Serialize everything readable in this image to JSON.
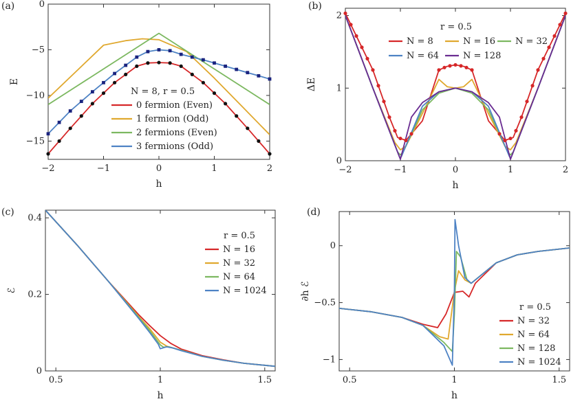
{
  "chart_data": [
    {
      "panel": "(a)",
      "type": "line",
      "xlabel": "h",
      "ylabel": "E",
      "xlim": [
        -2,
        2
      ],
      "ylim": [
        -17,
        0
      ],
      "xticks": [
        -2,
        -1,
        0,
        1,
        2
      ],
      "yticks": [
        0,
        -5,
        -10,
        -15
      ],
      "legend_title": "N = 8,  r = 0.5",
      "legend_position": "center-right",
      "series": [
        {
          "name": "0 fermion (Even)",
          "color": "#d62728",
          "x": [
            -2,
            -1.6,
            -1.2,
            -0.8,
            -0.4,
            -0.2,
            0,
            0.2,
            0.4,
            0.8,
            1.2,
            1.6,
            2
          ],
          "y": [
            -16.4,
            -13.6,
            -10.9,
            -8.6,
            -6.8,
            -6.45,
            -6.4,
            -6.45,
            -6.8,
            -8.6,
            -10.9,
            -13.6,
            -16.4
          ]
        },
        {
          "name": "1 fermion (Odd)",
          "color": "#e0a82e",
          "x": [
            -2,
            -1.5,
            -1,
            -0.6,
            -0.3,
            0,
            0.5,
            1,
            1.5,
            2
          ],
          "y": [
            -10.3,
            -7.4,
            -4.5,
            -4.0,
            -3.8,
            -3.9,
            -5.2,
            -8.1,
            -11.2,
            -14.3
          ]
        },
        {
          "name": "2 fermions (Even)",
          "color": "#7cb860",
          "x": [
            -2,
            -1,
            0,
            1,
            2
          ],
          "y": [
            -11.0,
            -7.1,
            -3.2,
            -7.1,
            -11.0
          ]
        },
        {
          "name": "3 fermions (Odd)",
          "color": "#4d82c4",
          "x": [
            -2,
            -1.6,
            -1.2,
            -0.8,
            -0.4,
            -0.2,
            0,
            0.2,
            0.4,
            0.8,
            1.2,
            1.6,
            2
          ],
          "y": [
            -14.2,
            -11.7,
            -9.6,
            -7.6,
            -5.8,
            -5.2,
            -5.0,
            -5.1,
            -5.5,
            -6.1,
            -6.8,
            -7.5,
            -8.2
          ]
        }
      ]
    },
    {
      "panel": "(b)",
      "type": "line",
      "xlabel": "h",
      "ylabel": "ΔE",
      "xlim": [
        -2,
        2
      ],
      "ylim": [
        0,
        2.1
      ],
      "xticks": [
        -2,
        -1,
        0,
        1,
        2
      ],
      "yticks": [
        0,
        1,
        2
      ],
      "legend_title": "r = 0.5",
      "legend_position": "top-center",
      "series": [
        {
          "name": "N = 8",
          "color": "#d62728",
          "x": [
            -2,
            -1.5,
            -1.2,
            -1.05,
            -0.9,
            -0.6,
            -0.3,
            -0.15,
            0,
            0.15,
            0.3,
            0.6,
            0.9,
            1.05,
            1.2,
            1.5,
            2
          ],
          "y": [
            2.03,
            1.25,
            0.6,
            0.32,
            0.28,
            0.55,
            1.25,
            1.3,
            1.32,
            1.3,
            1.25,
            0.55,
            0.28,
            0.32,
            0.6,
            1.25,
            2.03
          ]
        },
        {
          "name": "N = 16",
          "color": "#e0a82e",
          "x": [
            -2,
            -1.5,
            -1.1,
            -1.0,
            -0.9,
            -0.6,
            -0.3,
            -0.15,
            0,
            0.15,
            0.3,
            0.6,
            0.9,
            1.0,
            1.1,
            1.5,
            2
          ],
          "y": [
            2.0,
            1.0,
            0.25,
            0.15,
            0.2,
            0.65,
            1.12,
            1.02,
            1.0,
            1.02,
            1.12,
            0.65,
            0.2,
            0.15,
            0.25,
            1.0,
            2.0
          ]
        },
        {
          "name": "N = 32",
          "color": "#7cb860",
          "x": [
            -2,
            -1.5,
            -1.05,
            -1.0,
            -0.95,
            -0.6,
            -0.3,
            0,
            0.3,
            0.6,
            0.95,
            1.0,
            1.05,
            1.5,
            2
          ],
          "y": [
            2.0,
            1.0,
            0.12,
            0.08,
            0.12,
            0.7,
            0.93,
            1.0,
            0.93,
            0.7,
            0.12,
            0.08,
            0.12,
            1.0,
            2.0
          ]
        },
        {
          "name": "N = 64",
          "color": "#4d82c4",
          "x": [
            -2,
            -1.5,
            -1.02,
            -1.0,
            -0.98,
            -0.6,
            -0.3,
            0,
            0.3,
            0.6,
            0.98,
            1.0,
            1.02,
            1.5,
            2
          ],
          "y": [
            2.0,
            1.0,
            0.06,
            0.04,
            0.06,
            0.75,
            0.95,
            1.0,
            0.95,
            0.75,
            0.06,
            0.04,
            0.06,
            1.0,
            2.0
          ]
        },
        {
          "name": "N = 128",
          "color": "#6a2c91",
          "x": [
            -2,
            -1.5,
            -1.0,
            -0.8,
            -0.6,
            -0.3,
            0,
            0.3,
            0.6,
            0.8,
            1.0,
            1.5,
            2
          ],
          "y": [
            2.0,
            1.0,
            0.02,
            0.6,
            0.8,
            0.95,
            1.0,
            0.95,
            0.8,
            0.6,
            0.02,
            1.0,
            2.0
          ]
        }
      ]
    },
    {
      "panel": "(c)",
      "type": "line",
      "xlabel": "h",
      "ylabel": "ℰ",
      "xlim": [
        0.45,
        1.55
      ],
      "ylim": [
        0,
        0.42
      ],
      "xticks": [
        0.5,
        1,
        1.5
      ],
      "yticks": [
        0,
        0.2,
        0.4
      ],
      "legend_title": "r = 0.5",
      "legend_position": "top-right",
      "series": [
        {
          "name": "N = 16",
          "color": "#d62728",
          "x": [
            0.45,
            0.6,
            0.75,
            0.9,
            0.95,
            1.0,
            1.05,
            1.1,
            1.2,
            1.3,
            1.4,
            1.55
          ],
          "y": [
            0.42,
            0.33,
            0.235,
            0.145,
            0.118,
            0.092,
            0.072,
            0.057,
            0.04,
            0.029,
            0.02,
            0.012
          ]
        },
        {
          "name": "N = 32",
          "color": "#e0a82e",
          "x": [
            0.45,
            0.6,
            0.75,
            0.9,
            0.95,
            1.0,
            1.03,
            1.06,
            1.1,
            1.2,
            1.3,
            1.4,
            1.55
          ],
          "y": [
            0.42,
            0.33,
            0.235,
            0.14,
            0.11,
            0.075,
            0.065,
            0.06,
            0.054,
            0.038,
            0.028,
            0.02,
            0.012
          ]
        },
        {
          "name": "N = 64",
          "color": "#7cb860",
          "x": [
            0.45,
            0.6,
            0.75,
            0.9,
            0.95,
            1.0,
            1.015,
            1.04,
            1.08,
            1.2,
            1.3,
            1.4,
            1.55
          ],
          "y": [
            0.42,
            0.33,
            0.235,
            0.138,
            0.105,
            0.068,
            0.062,
            0.063,
            0.057,
            0.038,
            0.028,
            0.02,
            0.012
          ]
        },
        {
          "name": "N = 1024",
          "color": "#4d82c4",
          "x": [
            0.45,
            0.6,
            0.75,
            0.9,
            0.95,
            0.99,
            1.0,
            1.03,
            1.06,
            1.1,
            1.2,
            1.3,
            1.4,
            1.55
          ],
          "y": [
            0.42,
            0.33,
            0.235,
            0.135,
            0.1,
            0.07,
            0.058,
            0.063,
            0.06,
            0.053,
            0.038,
            0.028,
            0.02,
            0.012
          ]
        }
      ]
    },
    {
      "panel": "(d)",
      "type": "line",
      "xlabel": "h",
      "ylabel": "∂h ℰ",
      "xlim": [
        0.45,
        1.55
      ],
      "ylim": [
        -1.1,
        0.3
      ],
      "xticks": [
        0.5,
        1,
        1.5
      ],
      "yticks": [
        0,
        -0.5,
        -1
      ],
      "legend_title": "r = 0.5",
      "legend_position": "bottom-right",
      "series": [
        {
          "name": "N = 32",
          "color": "#d62728",
          "x": [
            0.45,
            0.6,
            0.75,
            0.85,
            0.92,
            0.96,
            1.0,
            1.04,
            1.07,
            1.1,
            1.2,
            1.3,
            1.4,
            1.55
          ],
          "y": [
            -0.55,
            -0.58,
            -0.63,
            -0.69,
            -0.72,
            -0.6,
            -0.41,
            -0.4,
            -0.45,
            -0.33,
            -0.15,
            -0.08,
            -0.05,
            -0.02
          ]
        },
        {
          "name": "N = 64",
          "color": "#e0a82e",
          "x": [
            0.45,
            0.6,
            0.75,
            0.85,
            0.93,
            0.97,
            1.0,
            1.02,
            1.05,
            1.08,
            1.2,
            1.3,
            1.4,
            1.55
          ],
          "y": [
            -0.55,
            -0.58,
            -0.63,
            -0.7,
            -0.8,
            -0.82,
            -0.4,
            -0.22,
            -0.3,
            -0.33,
            -0.15,
            -0.08,
            -0.05,
            -0.02
          ]
        },
        {
          "name": "N = 128",
          "color": "#7cb860",
          "x": [
            0.45,
            0.6,
            0.75,
            0.85,
            0.95,
            0.99,
            1.0,
            1.01,
            1.03,
            1.06,
            1.08,
            1.2,
            1.3,
            1.4,
            1.55
          ],
          "y": [
            -0.55,
            -0.58,
            -0.63,
            -0.7,
            -0.85,
            -0.93,
            -0.6,
            -0.05,
            -0.1,
            -0.3,
            -0.33,
            -0.15,
            -0.08,
            -0.05,
            -0.02
          ]
        },
        {
          "name": "N = 1024",
          "color": "#4d82c4",
          "x": [
            0.45,
            0.6,
            0.75,
            0.85,
            0.95,
            0.99,
            1.0,
            1.003,
            1.02,
            1.05,
            1.08,
            1.2,
            1.3,
            1.4,
            1.55
          ],
          "y": [
            -0.55,
            -0.58,
            -0.63,
            -0.7,
            -0.88,
            -1.05,
            -0.4,
            0.23,
            0.0,
            -0.28,
            -0.33,
            -0.15,
            -0.08,
            -0.05,
            -0.02
          ]
        }
      ]
    }
  ],
  "markers": {
    "a_even": {
      "color": "#111111",
      "shape": "circle",
      "x": [
        -2,
        -1.8,
        -1.6,
        -1.4,
        -1.2,
        -1,
        -0.8,
        -0.6,
        -0.4,
        -0.2,
        0,
        0.2,
        0.4,
        0.6,
        0.8,
        1,
        1.2,
        1.4,
        1.6,
        1.8,
        2
      ]
    },
    "a_odd": {
      "color": "#1a237e",
      "shape": "square",
      "x": [
        -2,
        -1.8,
        -1.6,
        -1.4,
        -1.2,
        -1,
        -0.8,
        -0.6,
        -0.4,
        -0.2,
        0,
        0.2,
        0.4,
        0.6,
        0.8,
        1,
        1.2,
        1.4,
        1.6,
        1.8,
        2
      ]
    },
    "b_n8": {
      "color": "#d62728",
      "shape": "circle",
      "x": [
        -2,
        -1.9,
        -1.8,
        -1.7,
        -1.6,
        -1.5,
        -1.4,
        -1.3,
        -1.2,
        -1.1,
        -1,
        -0.9,
        -0.8,
        -0.3,
        -0.2,
        -0.1,
        0,
        0.1,
        0.2,
        0.3,
        0.8,
        0.9,
        1,
        1.1,
        1.2,
        1.3,
        1.4,
        1.5,
        1.6,
        1.7,
        1.8,
        1.9,
        2
      ]
    }
  }
}
